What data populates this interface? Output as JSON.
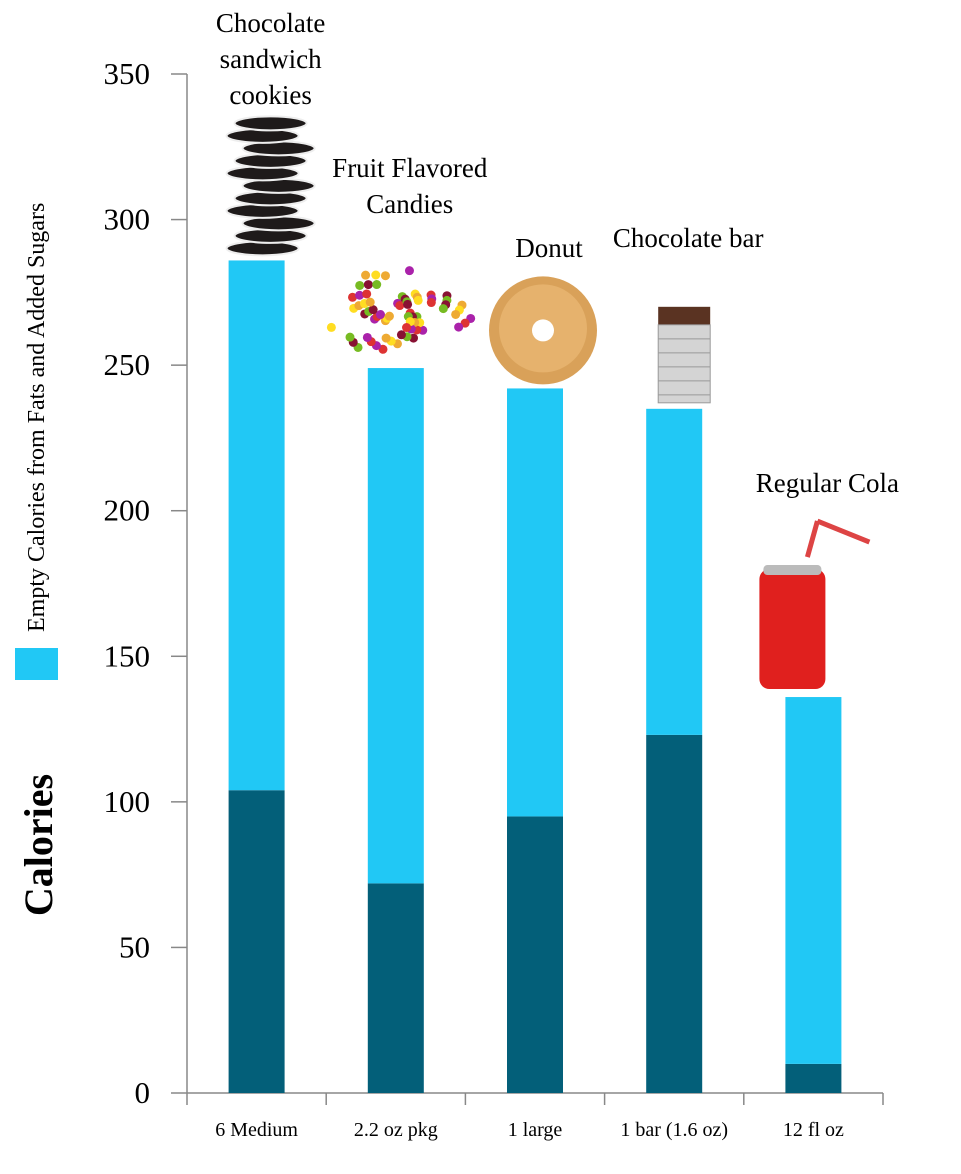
{
  "chart_data": {
    "type": "stacked_bar",
    "y_label": "Calories",
    "categories": [
      "6 Medium",
      "2.2 oz pkg",
      "1 large",
      "1 bar (1.6 oz)",
      "12 fl oz"
    ],
    "annotations": [
      "Chocolate sandwich cookies",
      "Fruit Flavored Candies",
      "Donut",
      "Chocolate bar",
      "Regular Cola"
    ],
    "series": [
      {
        "color": "#035f79",
        "values": [
          104,
          72,
          95,
          123,
          10
        ]
      },
      {
        "name": "Empty Calories from Fats and Added Sugars",
        "color": "#21c8f5",
        "values": [
          182,
          177,
          147,
          112,
          126
        ]
      }
    ],
    "ylim": [
      0,
      350
    ],
    "yticks": [
      0,
      50,
      100,
      150,
      200,
      250,
      300,
      350
    ]
  }
}
